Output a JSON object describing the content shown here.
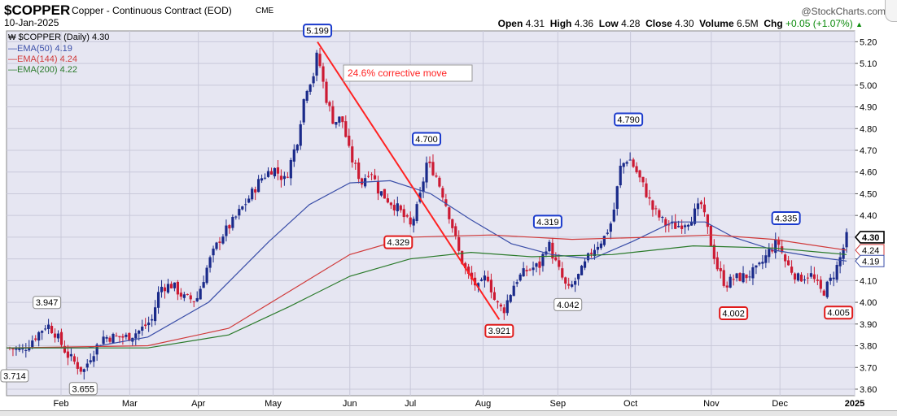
{
  "header": {
    "symbol": "$COPPER",
    "name": "Copper - Continuous Contract (EOD)",
    "exchange": "CME",
    "date": "10-Jan-2025",
    "source": "@StockCharts.com",
    "open_label": "Open",
    "open": "4.31",
    "high_label": "High",
    "high": "4.36",
    "low_label": "Low",
    "low": "4.28",
    "close_label": "Close",
    "close": "4.30",
    "volume_label": "Volume",
    "volume": "6.5M",
    "chg_label": "Chg",
    "chg": "+0.05 (+1.07%)"
  },
  "legend": {
    "main": "$COPPER (Daily) 4.30",
    "ema50": "EMA(50) 4.19",
    "ema144": "EMA(144) 4.24",
    "ema200": "EMA(200) 4.22"
  },
  "chart_data": {
    "type": "candlestick",
    "title": "$COPPER (Daily) 4.30",
    "ylim": [
      3.57,
      5.25
    ],
    "y_ticks": [
      "3.60",
      "3.70",
      "3.80",
      "3.90",
      "4.00",
      "4.10",
      "4.20",
      "4.30",
      "4.40",
      "4.50",
      "4.60",
      "4.70",
      "4.80",
      "4.90",
      "5.00",
      "5.10",
      "5.20"
    ],
    "x_ticks": [
      {
        "label": "Feb",
        "t": 0.135
      },
      {
        "label": "Mar",
        "t": 0.305
      },
      {
        "label": "Apr",
        "t": 0.475
      },
      {
        "label": "May",
        "t": 0.66
      },
      {
        "label": "Jun",
        "t": 0.85
      },
      {
        "label": "Jul",
        "t": 1.0
      },
      {
        "label": "Aug",
        "t": 1.18
      },
      {
        "label": "Sep",
        "t": 1.365
      },
      {
        "label": "Oct",
        "t": 1.545
      },
      {
        "label": "Nov",
        "t": 1.745
      },
      {
        "label": "Dec",
        "t": 1.915
      },
      {
        "label": "2025",
        "t": 2.1
      }
    ],
    "closes": [
      {
        "t": 0.0,
        "v": 3.79
      },
      {
        "t": 0.04,
        "v": 3.78
      },
      {
        "t": 0.07,
        "v": 3.84
      },
      {
        "t": 0.1,
        "v": 3.9
      },
      {
        "t": 0.12,
        "v": 3.86
      },
      {
        "t": 0.15,
        "v": 3.76
      },
      {
        "t": 0.17,
        "v": 3.72
      },
      {
        "t": 0.19,
        "v": 3.68
      },
      {
        "t": 0.21,
        "v": 3.76
      },
      {
        "t": 0.24,
        "v": 3.84
      },
      {
        "t": 0.27,
        "v": 3.84
      },
      {
        "t": 0.3,
        "v": 3.84
      },
      {
        "t": 0.33,
        "v": 3.87
      },
      {
        "t": 0.36,
        "v": 3.92
      },
      {
        "t": 0.38,
        "v": 4.07
      },
      {
        "t": 0.41,
        "v": 4.08
      },
      {
        "t": 0.44,
        "v": 4.02
      },
      {
        "t": 0.47,
        "v": 4.01
      },
      {
        "t": 0.5,
        "v": 4.18
      },
      {
        "t": 0.53,
        "v": 4.3
      },
      {
        "t": 0.56,
        "v": 4.37
      },
      {
        "t": 0.6,
        "v": 4.48
      },
      {
        "t": 0.63,
        "v": 4.57
      },
      {
        "t": 0.66,
        "v": 4.62
      },
      {
        "t": 0.69,
        "v": 4.56
      },
      {
        "t": 0.72,
        "v": 4.75
      },
      {
        "t": 0.74,
        "v": 4.98
      },
      {
        "t": 0.76,
        "v": 5.05
      },
      {
        "t": 0.77,
        "v": 5.15
      },
      {
        "t": 0.79,
        "v": 4.95
      },
      {
        "t": 0.81,
        "v": 4.83
      },
      {
        "t": 0.83,
        "v": 4.85
      },
      {
        "t": 0.85,
        "v": 4.68
      },
      {
        "t": 0.88,
        "v": 4.55
      },
      {
        "t": 0.9,
        "v": 4.62
      },
      {
        "t": 0.92,
        "v": 4.52
      },
      {
        "t": 0.94,
        "v": 4.48
      },
      {
        "t": 0.97,
        "v": 4.43
      },
      {
        "t": 1.0,
        "v": 4.35
      },
      {
        "t": 1.02,
        "v": 4.45
      },
      {
        "t": 1.04,
        "v": 4.64
      },
      {
        "t": 1.06,
        "v": 4.6
      },
      {
        "t": 1.08,
        "v": 4.5
      },
      {
        "t": 1.1,
        "v": 4.38
      },
      {
        "t": 1.12,
        "v": 4.23
      },
      {
        "t": 1.14,
        "v": 4.13
      },
      {
        "t": 1.17,
        "v": 4.06
      },
      {
        "t": 1.19,
        "v": 4.13
      },
      {
        "t": 1.21,
        "v": 4.0
      },
      {
        "t": 1.23,
        "v": 3.96
      },
      {
        "t": 1.26,
        "v": 4.1
      },
      {
        "t": 1.29,
        "v": 4.15
      },
      {
        "t": 1.32,
        "v": 4.17
      },
      {
        "t": 1.34,
        "v": 4.28
      },
      {
        "t": 1.36,
        "v": 4.18
      },
      {
        "t": 1.39,
        "v": 4.05
      },
      {
        "t": 1.42,
        "v": 4.13
      },
      {
        "t": 1.45,
        "v": 4.24
      },
      {
        "t": 1.48,
        "v": 4.3
      },
      {
        "t": 1.5,
        "v": 4.38
      },
      {
        "t": 1.52,
        "v": 4.62
      },
      {
        "t": 1.54,
        "v": 4.67
      },
      {
        "t": 1.56,
        "v": 4.6
      },
      {
        "t": 1.58,
        "v": 4.52
      },
      {
        "t": 1.6,
        "v": 4.43
      },
      {
        "t": 1.63,
        "v": 4.36
      },
      {
        "t": 1.66,
        "v": 4.35
      },
      {
        "t": 1.69,
        "v": 4.38
      },
      {
        "t": 1.72,
        "v": 4.45
      },
      {
        "t": 1.74,
        "v": 4.3
      },
      {
        "t": 1.76,
        "v": 4.16
      },
      {
        "t": 1.78,
        "v": 4.08
      },
      {
        "t": 1.8,
        "v": 4.11
      },
      {
        "t": 1.83,
        "v": 4.12
      },
      {
        "t": 1.86,
        "v": 4.15
      },
      {
        "t": 1.89,
        "v": 4.24
      },
      {
        "t": 1.91,
        "v": 4.28
      },
      {
        "t": 1.93,
        "v": 4.18
      },
      {
        "t": 1.96,
        "v": 4.11
      },
      {
        "t": 1.99,
        "v": 4.13
      },
      {
        "t": 2.02,
        "v": 4.04
      },
      {
        "t": 2.04,
        "v": 4.1
      },
      {
        "t": 2.06,
        "v": 4.18
      },
      {
        "t": 2.08,
        "v": 4.3
      }
    ],
    "series": [
      {
        "name": "EMA(50)",
        "color": "#3a4ea8",
        "points": [
          {
            "t": 0.0,
            "v": 3.79
          },
          {
            "t": 0.2,
            "v": 3.79
          },
          {
            "t": 0.35,
            "v": 3.84
          },
          {
            "t": 0.5,
            "v": 4.0
          },
          {
            "t": 0.65,
            "v": 4.28
          },
          {
            "t": 0.75,
            "v": 4.45
          },
          {
            "t": 0.85,
            "v": 4.55
          },
          {
            "t": 0.95,
            "v": 4.56
          },
          {
            "t": 1.05,
            "v": 4.5
          },
          {
            "t": 1.15,
            "v": 4.38
          },
          {
            "t": 1.25,
            "v": 4.27
          },
          {
            "t": 1.35,
            "v": 4.22
          },
          {
            "t": 1.45,
            "v": 4.2
          },
          {
            "t": 1.55,
            "v": 4.28
          },
          {
            "t": 1.65,
            "v": 4.37
          },
          {
            "t": 1.73,
            "v": 4.37
          },
          {
            "t": 1.8,
            "v": 4.3
          },
          {
            "t": 1.9,
            "v": 4.24
          },
          {
            "t": 2.0,
            "v": 4.21
          },
          {
            "t": 2.08,
            "v": 4.19
          }
        ]
      },
      {
        "name": "EMA(144)",
        "color": "#d03a3a",
        "points": [
          {
            "t": 0.0,
            "v": 3.79
          },
          {
            "t": 0.35,
            "v": 3.8
          },
          {
            "t": 0.55,
            "v": 3.88
          },
          {
            "t": 0.7,
            "v": 4.05
          },
          {
            "t": 0.85,
            "v": 4.22
          },
          {
            "t": 1.0,
            "v": 4.3
          },
          {
            "t": 1.2,
            "v": 4.31
          },
          {
            "t": 1.4,
            "v": 4.29
          },
          {
            "t": 1.6,
            "v": 4.3
          },
          {
            "t": 1.75,
            "v": 4.31
          },
          {
            "t": 1.9,
            "v": 4.29
          },
          {
            "t": 2.08,
            "v": 4.24
          }
        ]
      },
      {
        "name": "EMA(200)",
        "color": "#2a7a2a",
        "points": [
          {
            "t": 0.0,
            "v": 3.79
          },
          {
            "t": 0.35,
            "v": 3.79
          },
          {
            "t": 0.55,
            "v": 3.85
          },
          {
            "t": 0.7,
            "v": 3.98
          },
          {
            "t": 0.85,
            "v": 4.12
          },
          {
            "t": 1.0,
            "v": 4.2
          },
          {
            "t": 1.15,
            "v": 4.23
          },
          {
            "t": 1.3,
            "v": 4.21
          },
          {
            "t": 1.5,
            "v": 4.22
          },
          {
            "t": 1.7,
            "v": 4.26
          },
          {
            "t": 1.9,
            "v": 4.25
          },
          {
            "t": 2.08,
            "v": 4.22
          }
        ]
      }
    ],
    "trend_line": {
      "color": "#ff2222",
      "from": {
        "t": 0.77,
        "v": 5.199
      },
      "to": {
        "t": 1.22,
        "v": 3.921
      }
    },
    "annotations": [
      {
        "label": "5.199",
        "t": 0.77,
        "v": 5.199,
        "style": "blue",
        "pos": "above"
      },
      {
        "label": "4.700",
        "t": 1.04,
        "v": 4.7,
        "style": "blue",
        "pos": "above"
      },
      {
        "label": "4.319",
        "t": 1.34,
        "v": 4.319,
        "style": "blue",
        "pos": "above"
      },
      {
        "label": "4.790",
        "t": 1.54,
        "v": 4.79,
        "style": "blue",
        "pos": "above"
      },
      {
        "label": "4.335",
        "t": 1.93,
        "v": 4.335,
        "style": "blue",
        "pos": "above"
      },
      {
        "label": "4.329",
        "t": 0.97,
        "v": 4.329,
        "style": "red",
        "pos": "below"
      },
      {
        "label": "3.921",
        "t": 1.22,
        "v": 3.921,
        "style": "red",
        "pos": "below"
      },
      {
        "label": "4.002",
        "t": 1.8,
        "v": 4.002,
        "style": "red",
        "pos": "below"
      },
      {
        "label": "4.005",
        "t": 2.06,
        "v": 4.005,
        "style": "red",
        "pos": "below"
      },
      {
        "label": "3.947",
        "t": 0.1,
        "v": 3.947,
        "style": "gray",
        "pos": "above"
      },
      {
        "label": "3.714",
        "t": 0.02,
        "v": 3.714,
        "style": "gray",
        "pos": "below"
      },
      {
        "label": "3.655",
        "t": 0.19,
        "v": 3.655,
        "style": "gray",
        "pos": "below"
      },
      {
        "label": "4.042",
        "t": 1.39,
        "v": 4.042,
        "style": "gray",
        "pos": "below"
      }
    ],
    "text_note": {
      "label": "24.6% corrective move",
      "color": "#ff2222"
    },
    "right_labels": [
      {
        "label": "4.30",
        "v": 4.3,
        "style": "bold"
      },
      {
        "label": "4.24",
        "v": 4.24,
        "style": "red"
      },
      {
        "label": "4.19",
        "v": 4.19,
        "style": "blue"
      }
    ],
    "grid": true,
    "colors": {
      "up": "#1a2a8a",
      "down": "#cc1a33",
      "bg": "#e6e6f2",
      "grid": "#c9c9da"
    }
  }
}
